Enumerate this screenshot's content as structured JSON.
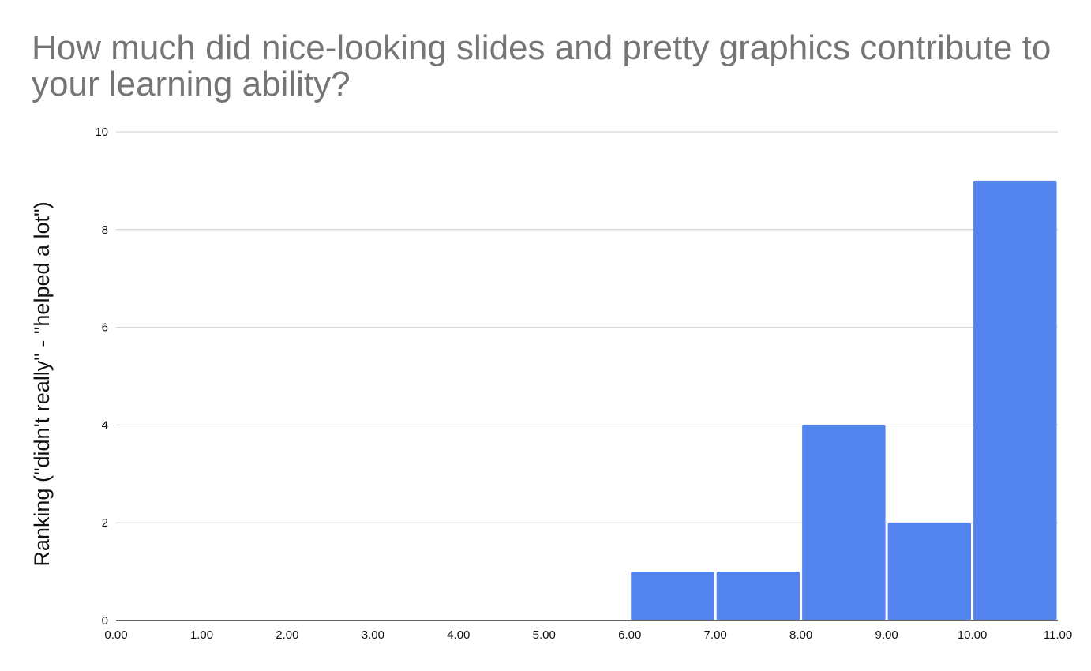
{
  "chart_data": {
    "type": "bar",
    "title": "How much did nice-looking slides and pretty graphics contribute to your learning ability?",
    "xlabel": "",
    "ylabel": "Ranking (\"didn't really\" - \"helped a lot\")",
    "x_ticks": [
      "0.00",
      "1.00",
      "2.00",
      "3.00",
      "4.00",
      "5.00",
      "6.00",
      "7.00",
      "8.00",
      "9.00",
      "10.00",
      "11.00"
    ],
    "y_ticks": [
      "0",
      "2",
      "4",
      "6",
      "8",
      "10"
    ],
    "xlim": [
      0,
      11
    ],
    "ylim": [
      0,
      10
    ],
    "bins": [
      {
        "start": 6,
        "end": 7,
        "value": 1
      },
      {
        "start": 7,
        "end": 8,
        "value": 1
      },
      {
        "start": 8,
        "end": 9,
        "value": 4
      },
      {
        "start": 9,
        "end": 10,
        "value": 2
      },
      {
        "start": 10,
        "end": 11,
        "value": 9
      }
    ],
    "grid": true,
    "bar_color": "#5384ED",
    "grid_color": "#CCCCCC",
    "axis_color": "#333333",
    "title_color": "#757575"
  }
}
